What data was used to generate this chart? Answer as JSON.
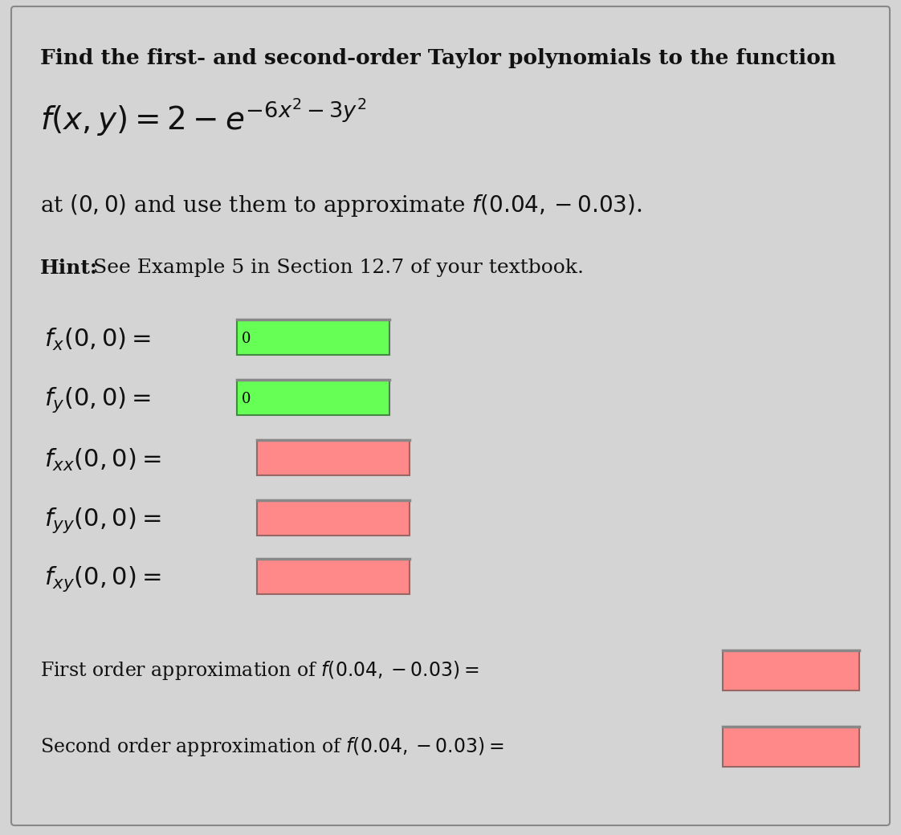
{
  "background_color": "#d4d4d4",
  "border_color": "#888888",
  "text_color": "#111111",
  "green_box_color": "#66ff55",
  "green_box_border": "#448844",
  "red_box_color": "#ff8888",
  "red_box_border": "#996666",
  "title_line": "Find the first- and second-order Taylor polynomials to the function",
  "hint_bold": "Hint:",
  "hint_rest": " See Example 5 in Section 12.7 of your textbook.",
  "rows": [
    {
      "color": "green",
      "value": "0"
    },
    {
      "color": "green",
      "value": "0"
    },
    {
      "color": "red",
      "value": ""
    },
    {
      "color": "red",
      "value": ""
    },
    {
      "color": "red",
      "value": ""
    }
  ]
}
